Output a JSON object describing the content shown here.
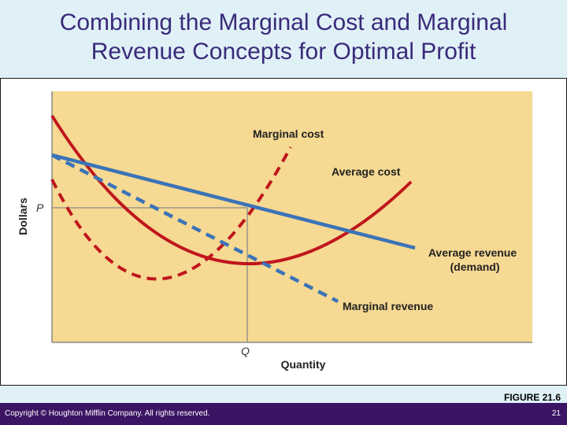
{
  "title": {
    "line1": "Combining the Marginal Cost and Marginal",
    "line2": "Revenue Concepts for Optimal Profit"
  },
  "diagram": {
    "y_axis_label": "Dollars",
    "x_axis_label": "Quantity",
    "price_label": "P",
    "quantity_label": "Q",
    "curves": {
      "marginal_cost": "Marginal cost",
      "average_cost": "Average cost",
      "average_revenue_line1": "Average revenue",
      "average_revenue_line2": "(demand)",
      "marginal_revenue": "Marginal revenue"
    }
  },
  "figure_number": "FIGURE 21.6",
  "footer": {
    "copyright": "Copyright © Houghton Mifflin Company. All rights reserved.",
    "page_number": "21"
  },
  "colors": {
    "title": "#3a2a7a",
    "slide_background": "#dff0f7",
    "plot_background": "#f6d992",
    "cost_curves": "#c0161d",
    "revenue_curves": "#3b73b8",
    "footer_bar": "#3b1464"
  }
}
